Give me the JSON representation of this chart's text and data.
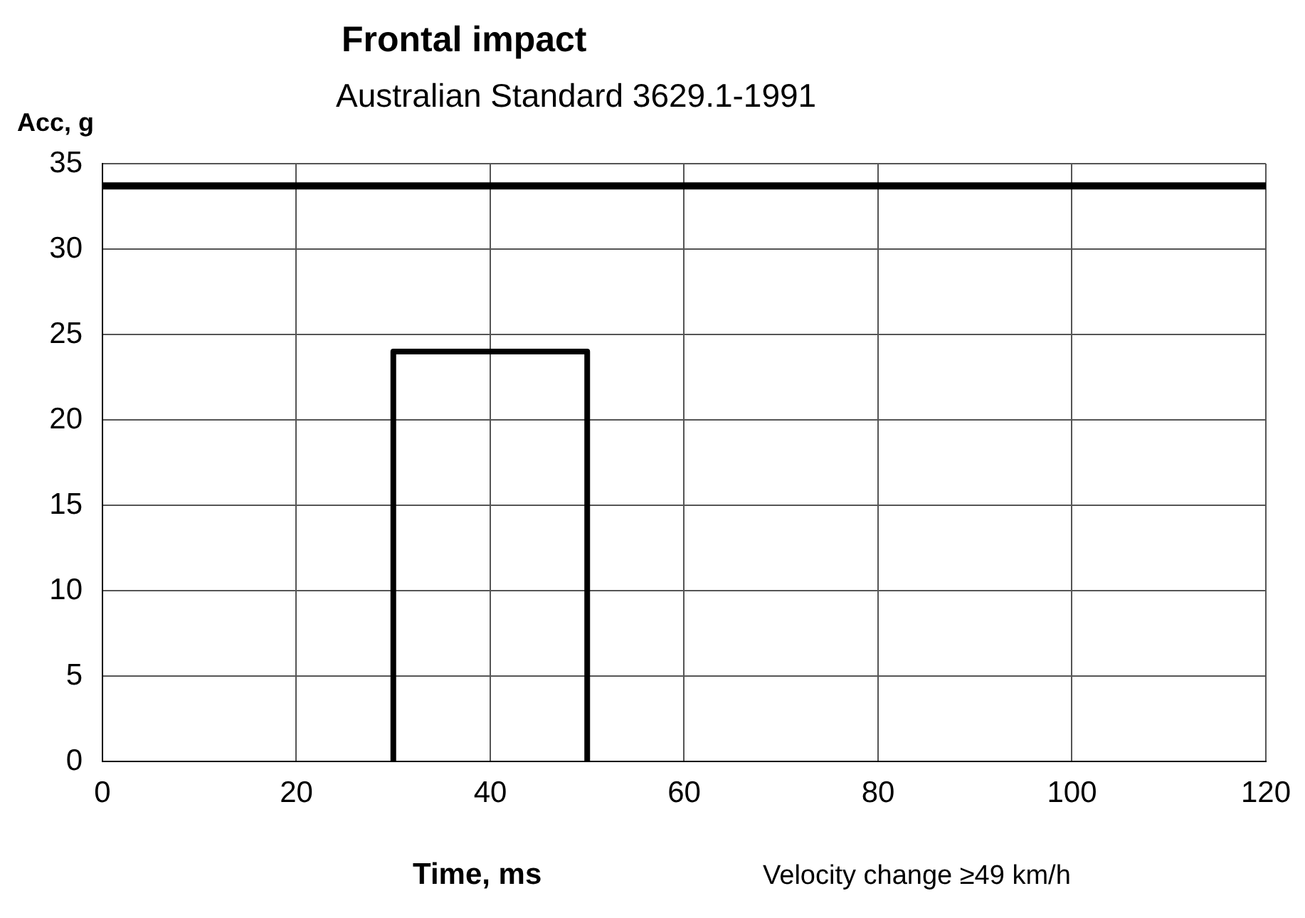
{
  "chart_data": {
    "type": "line",
    "title": "Frontal impact",
    "subtitle": "Australian Standard 3629.1-1991",
    "xlabel": "Time, ms",
    "ylabel": "Acc, g",
    "annotations": [
      "Velocity change ≥49 km/h"
    ],
    "series": [
      {
        "x": [
          0,
          120
        ],
        "values": [
          33.7,
          33.7
        ],
        "color": "#000000"
      },
      {
        "x": [
          30,
          30,
          50,
          50
        ],
        "values": [
          0,
          24,
          24,
          0
        ],
        "color": "#000000"
      }
    ],
    "xlim": [
      0,
      120
    ],
    "xticks": [
      0,
      20,
      40,
      60,
      80,
      100,
      120
    ],
    "ylim": [
      0,
      35
    ],
    "yticks": [
      0,
      5,
      10,
      15,
      20,
      25,
      30,
      35
    ],
    "grid": true,
    "legend": false,
    "marker": "none",
    "line_style": "solid"
  }
}
